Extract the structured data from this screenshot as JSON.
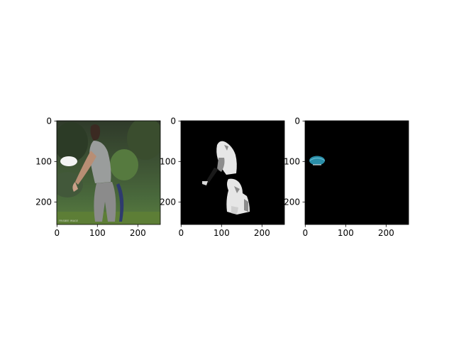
{
  "figure": {
    "background": "#ffffff",
    "panels": [
      {
        "id": "panel-1",
        "content": "photo",
        "x_ticks": [
          "0",
          "100",
          "200"
        ],
        "y_ticks": [
          "0",
          "100",
          "200"
        ],
        "watermark": "FRISBEE IMAGE"
      },
      {
        "id": "panel-2",
        "content": "segmentation-mask",
        "x_ticks": [
          "0",
          "100",
          "200"
        ],
        "y_ticks": [
          "0",
          "100",
          "200"
        ]
      },
      {
        "id": "panel-3",
        "content": "object-mask",
        "x_ticks": [
          "0",
          "100",
          "200"
        ],
        "y_ticks": [
          "0",
          "100",
          "200"
        ]
      }
    ],
    "colors": {
      "mask_background": "#000000",
      "mask_person": "#e6e6e6",
      "mask_gray": "#8c8c8c",
      "frisbee_cyan": "#2a8ea8",
      "frisbee_white": "#f5f5f5"
    }
  }
}
